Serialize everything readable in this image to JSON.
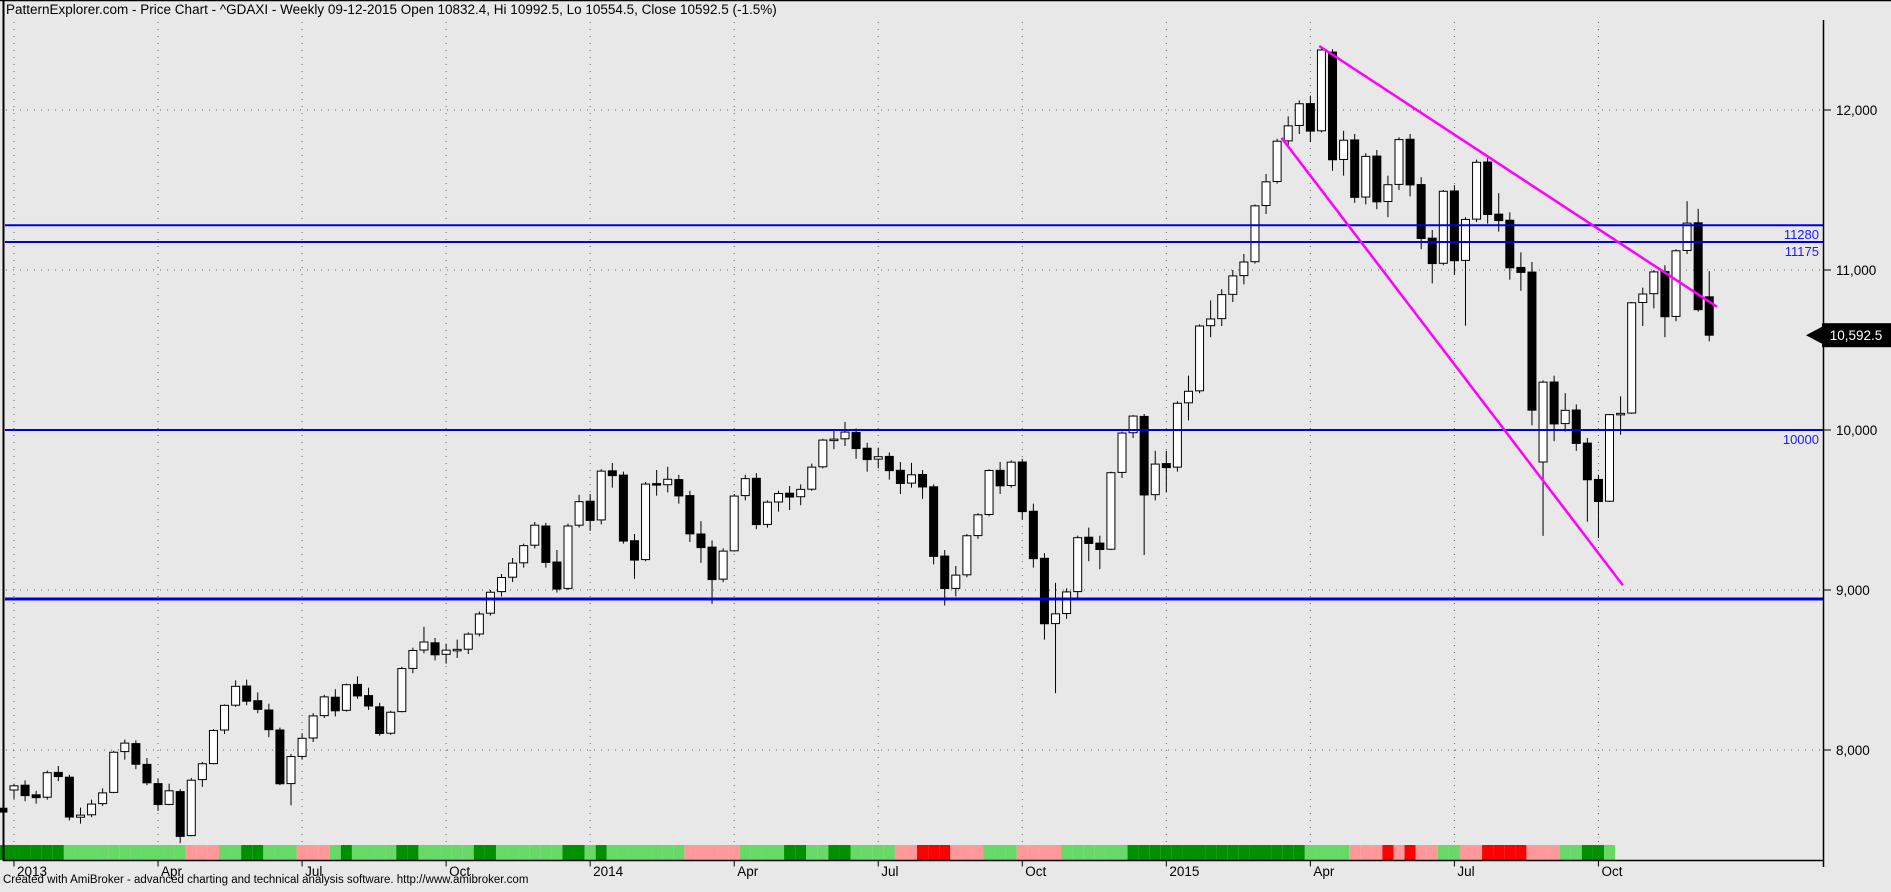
{
  "title": {
    "text": "PatternExplorer.com - Price Chart - ^GDAXI - Weekly 09-12-2015 Open 10832.4, Hi 10992.5, Lo 10554.5, Close 10592.5 (-1.5%)",
    "app": "PatternExplorer.com",
    "view": "Price Chart",
    "symbol": "^GDAXI",
    "interval": "Weekly",
    "date": "09-12-2015",
    "open": "10832.4",
    "hi": "10992.5",
    "lo": "10554.5",
    "close": "10592.5",
    "change": "-1.5%"
  },
  "footer": {
    "text": "Created with AmiBroker - advanced charting and technical analysis software. http://www.amibroker.com"
  },
  "last_price_tag": "10,592.5",
  "y_axis": {
    "labels": [
      {
        "text": "12,000",
        "price": 12000
      },
      {
        "text": "11,000",
        "price": 11000
      },
      {
        "text": "10,000",
        "price": 10000
      },
      {
        "text": "9,000",
        "price": 9000
      },
      {
        "text": "8,000",
        "price": 8000
      }
    ]
  },
  "x_axis": {
    "ticks": [
      {
        "label": "2013",
        "week": 1
      },
      {
        "label": "Apr",
        "week": 14
      },
      {
        "label": "Jul",
        "week": 27
      },
      {
        "label": "Oct",
        "week": 40
      },
      {
        "label": "2014",
        "week": 53
      },
      {
        "label": "Apr",
        "week": 66
      },
      {
        "label": "Jul",
        "week": 79
      },
      {
        "label": "Oct",
        "week": 92
      },
      {
        "label": "2015",
        "week": 105
      },
      {
        "label": "Apr",
        "week": 118
      },
      {
        "label": "Jul",
        "week": 131
      },
      {
        "label": "Oct",
        "week": 144
      }
    ]
  },
  "levels": [
    {
      "price": 11280,
      "label": "11280",
      "thickness": 2
    },
    {
      "price": 11175,
      "label": "11175",
      "thickness": 2
    },
    {
      "price": 10000,
      "label": "10000",
      "thickness": 2
    },
    {
      "price": 8944,
      "label": "",
      "thickness": 3
    }
  ],
  "trendlines": [
    {
      "name": "upper-downtrend-line",
      "week1": 118.8,
      "price1": 12400,
      "week2": 154.7,
      "price2": 10770
    },
    {
      "name": "lower-downtrend-line",
      "week1": 115.4,
      "price1": 11826,
      "week2": 146.2,
      "price2": 9030
    }
  ],
  "colors": {
    "background": "#e8e8e8",
    "grid_dots": "#606060",
    "level_line_blue": "#0000dd",
    "level_label_blue": "#1a1aff",
    "trendline_magenta": "#ff00ff",
    "candle_up_fill": "#ffffff",
    "candle_down_fill": "#000000",
    "candle_stroke": "#000000",
    "tag_bg": "#000000",
    "tag_text": "#ffffff",
    "ribbon_dark_green": "#009000",
    "ribbon_light_green": "#66d966",
    "ribbon_pink": "#ff9999",
    "ribbon_red": "#ff0000"
  },
  "chart_data": {
    "type": "candlestick",
    "symbol": "^GDAXI",
    "timeframe": "Weekly",
    "range": "Jan 2013 - Dec 9 2015",
    "title": "Price Chart ^GDAXI Weekly",
    "ylim": [
      7300,
      12650
    ],
    "grid": "dotted horizontal at 1000-point levels, dotted vertical at quarter boundaries",
    "legend_position": "none",
    "first_candle_partial": true,
    "candles_ohlc": [
      [
        7636,
        7665,
        7595,
        7612
      ],
      [
        7750,
        7790,
        7695,
        7776
      ],
      [
        7780,
        7810,
        7680,
        7715
      ],
      [
        7720,
        7745,
        7665,
        7702
      ],
      [
        7705,
        7872,
        7690,
        7858
      ],
      [
        7860,
        7900,
        7805,
        7834
      ],
      [
        7830,
        7845,
        7560,
        7581
      ],
      [
        7580,
        7640,
        7540,
        7593
      ],
      [
        7595,
        7690,
        7580,
        7662
      ],
      [
        7665,
        7760,
        7650,
        7732
      ],
      [
        7735,
        7995,
        7730,
        7986
      ],
      [
        7990,
        8065,
        7940,
        8043
      ],
      [
        8040,
        8060,
        7880,
        7911
      ],
      [
        7910,
        7950,
        7780,
        7795
      ],
      [
        7790,
        7820,
        7620,
        7659
      ],
      [
        7660,
        7790,
        7655,
        7745
      ],
      [
        7740,
        7755,
        7418,
        7460
      ],
      [
        7465,
        7825,
        7460,
        7811
      ],
      [
        7815,
        7925,
        7770,
        7914
      ],
      [
        7915,
        8130,
        7910,
        8122
      ],
      [
        8125,
        8285,
        8100,
        8279
      ],
      [
        8280,
        8435,
        8270,
        8398
      ],
      [
        8400,
        8440,
        8280,
        8305
      ],
      [
        8308,
        8360,
        8230,
        8254
      ],
      [
        8250,
        8290,
        8080,
        8127
      ],
      [
        8125,
        8140,
        7780,
        7789
      ],
      [
        7790,
        7975,
        7655,
        7959
      ],
      [
        7960,
        8105,
        7940,
        8073
      ],
      [
        8075,
        8230,
        8050,
        8213
      ],
      [
        8215,
        8345,
        8200,
        8332
      ],
      [
        8330,
        8380,
        8210,
        8245
      ],
      [
        8248,
        8415,
        8240,
        8408
      ],
      [
        8410,
        8460,
        8320,
        8338
      ],
      [
        8340,
        8390,
        8250,
        8275
      ],
      [
        8270,
        8295,
        8090,
        8103
      ],
      [
        8105,
        8245,
        8095,
        8236
      ],
      [
        8240,
        8520,
        8235,
        8509
      ],
      [
        8510,
        8640,
        8480,
        8622
      ],
      [
        8625,
        8770,
        8605,
        8675
      ],
      [
        8670,
        8700,
        8560,
        8595
      ],
      [
        8598,
        8665,
        8540,
        8624
      ],
      [
        8628,
        8690,
        8575,
        8629
      ],
      [
        8630,
        8735,
        8600,
        8724
      ],
      [
        8725,
        8865,
        8710,
        8850
      ],
      [
        8855,
        9000,
        8840,
        8986
      ],
      [
        8990,
        9100,
        8960,
        9078
      ],
      [
        9080,
        9200,
        9050,
        9168
      ],
      [
        9170,
        9290,
        9140,
        9277
      ],
      [
        9280,
        9425,
        9260,
        9405
      ],
      [
        9400,
        9420,
        9140,
        9172
      ],
      [
        9175,
        9250,
        8984,
        9006
      ],
      [
        9010,
        9415,
        9000,
        9400
      ],
      [
        9405,
        9595,
        9390,
        9552
      ],
      [
        9555,
        9600,
        9370,
        9435
      ],
      [
        9438,
        9755,
        9410,
        9743
      ],
      [
        9745,
        9794,
        9640,
        9715
      ],
      [
        9718,
        9740,
        9290,
        9306
      ],
      [
        9308,
        9350,
        9070,
        9187
      ],
      [
        9190,
        9675,
        9180,
        9662
      ],
      [
        9665,
        9750,
        9590,
        9656
      ],
      [
        9658,
        9770,
        9610,
        9692
      ],
      [
        9690,
        9720,
        9540,
        9588
      ],
      [
        9590,
        9620,
        9300,
        9351
      ],
      [
        9350,
        9430,
        9170,
        9265
      ],
      [
        9268,
        9310,
        8913,
        9065
      ],
      [
        9068,
        9260,
        9050,
        9243
      ],
      [
        9245,
        9600,
        9240,
        9587
      ],
      [
        9590,
        9720,
        9560,
        9696
      ],
      [
        9698,
        9730,
        9380,
        9409
      ],
      [
        9410,
        9560,
        9390,
        9549
      ],
      [
        9550,
        9620,
        9490,
        9603
      ],
      [
        9605,
        9650,
        9500,
        9581
      ],
      [
        9583,
        9660,
        9530,
        9629
      ],
      [
        9630,
        9790,
        9620,
        9768
      ],
      [
        9770,
        9945,
        9760,
        9937
      ],
      [
        9940,
        9995,
        9880,
        9943
      ],
      [
        9945,
        10051,
        9900,
        9987
      ],
      [
        9985,
        10010,
        9820,
        9884
      ],
      [
        9886,
        9920,
        9740,
        9815
      ],
      [
        9818,
        9890,
        9760,
        9833
      ],
      [
        9835,
        9860,
        9690,
        9746
      ],
      [
        9748,
        9800,
        9600,
        9666
      ],
      [
        9668,
        9795,
        9640,
        9720
      ],
      [
        9722,
        9750,
        9570,
        9644
      ],
      [
        9645,
        9660,
        9160,
        9210
      ],
      [
        9212,
        9250,
        8903,
        9009
      ],
      [
        9010,
        9150,
        8960,
        9093
      ],
      [
        9095,
        9350,
        9080,
        9339
      ],
      [
        9340,
        9480,
        9320,
        9470
      ],
      [
        9472,
        9755,
        9460,
        9747
      ],
      [
        9748,
        9800,
        9600,
        9651
      ],
      [
        9653,
        9810,
        9640,
        9799
      ],
      [
        9800,
        9820,
        9440,
        9490
      ],
      [
        9492,
        9540,
        9140,
        9196
      ],
      [
        9198,
        9230,
        8690,
        8789
      ],
      [
        8790,
        9045,
        8355,
        8851
      ],
      [
        8853,
        9010,
        8820,
        8988
      ],
      [
        8990,
        9340,
        8950,
        9327
      ],
      [
        9330,
        9390,
        9180,
        9291
      ],
      [
        9293,
        9340,
        9130,
        9253
      ],
      [
        9255,
        9740,
        9250,
        9733
      ],
      [
        9735,
        9990,
        9700,
        9981
      ],
      [
        9983,
        10093,
        9950,
        10087
      ],
      [
        10085,
        10100,
        9219,
        9594
      ],
      [
        9596,
        9870,
        9560,
        9787
      ],
      [
        9790,
        9870,
        9610,
        9765
      ],
      [
        9768,
        10180,
        9740,
        10167
      ],
      [
        10170,
        10340,
        10060,
        10242
      ],
      [
        10245,
        10660,
        10230,
        10650
      ],
      [
        10652,
        10810,
        10580,
        10694
      ],
      [
        10696,
        10880,
        10650,
        10846
      ],
      [
        10848,
        11000,
        10800,
        10963
      ],
      [
        10965,
        11100,
        10910,
        11050
      ],
      [
        11052,
        11410,
        11040,
        11401
      ],
      [
        11403,
        11600,
        11350,
        11551
      ],
      [
        11553,
        11820,
        11540,
        11805
      ],
      [
        11807,
        11960,
        11760,
        11901
      ],
      [
        11903,
        12060,
        11850,
        12039
      ],
      [
        12040,
        12090,
        11800,
        11868
      ],
      [
        11870,
        12390,
        11860,
        12375
      ],
      [
        12362,
        12380,
        11620,
        11689
      ],
      [
        11691,
        11870,
        11590,
        11811
      ],
      [
        11813,
        11850,
        11420,
        11454
      ],
      [
        11456,
        11730,
        11410,
        11710
      ],
      [
        11712,
        11750,
        11380,
        11426
      ],
      [
        11428,
        11590,
        11330,
        11533
      ],
      [
        11535,
        11830,
        11500,
        11815
      ],
      [
        11817,
        11850,
        11460,
        11532
      ],
      [
        11534,
        11580,
        11130,
        11197
      ],
      [
        11199,
        11250,
        10916,
        11040
      ],
      [
        11042,
        11500,
        11030,
        11492
      ],
      [
        11494,
        11530,
        10970,
        11058
      ],
      [
        11060,
        11330,
        10652,
        11316
      ],
      [
        11318,
        11690,
        11300,
        11673
      ],
      [
        11675,
        11700,
        11290,
        11347
      ],
      [
        11349,
        11480,
        11240,
        11309
      ],
      [
        11311,
        11360,
        10940,
        11014
      ],
      [
        11016,
        11110,
        10870,
        10985
      ],
      [
        10987,
        11050,
        10029,
        10124
      ],
      [
        9800,
        10310,
        9338,
        10299
      ],
      [
        10300,
        10340,
        9930,
        10038
      ],
      [
        10040,
        10230,
        9990,
        10123
      ],
      [
        10125,
        10160,
        9870,
        9916
      ],
      [
        9918,
        9950,
        9427,
        9689
      ],
      [
        9691,
        9720,
        9325,
        9553
      ],
      [
        9555,
        10100,
        9550,
        10096
      ],
      [
        10098,
        10210,
        9970,
        10104
      ],
      [
        10106,
        10800,
        10100,
        10795
      ],
      [
        10797,
        10890,
        10650,
        10850
      ],
      [
        10852,
        11000,
        10760,
        10988
      ],
      [
        10990,
        11030,
        10580,
        10708
      ],
      [
        10710,
        11130,
        10680,
        11120
      ],
      [
        11122,
        11430,
        11100,
        11293
      ],
      [
        11295,
        11382,
        10740,
        10752
      ],
      [
        10832.4,
        10992.5,
        10554.5,
        10592.5
      ]
    ],
    "ribbon_weekly_colors": "GGGGGGgggggggggggpppggGGgggpppgGggggGGgggggGGggggggGGgGgggggggpppppggggGGggGGggggpprrrpppgggppppggggggGGGGGGGGGGGGGGGGggggppprprppggpprrrrpppggGGg---------",
    "ribbon_color_key": {
      "G": "dark green (strong up)",
      "g": "light green (up)",
      "p": "pink (down)",
      "r": "red (strong down)",
      "-": "no signal"
    }
  }
}
